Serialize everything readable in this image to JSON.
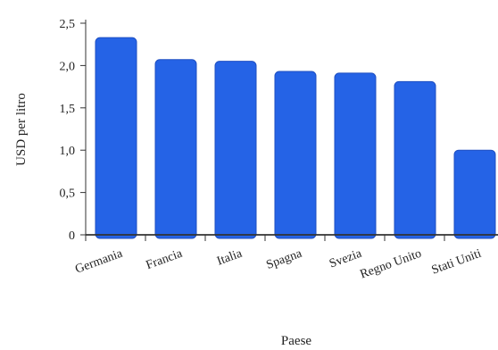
{
  "chart_data": {
    "type": "bar",
    "categories": [
      "Germania",
      "Francia",
      "Italia",
      "Spagna",
      "Svezia",
      "Regno Unito",
      "Stati Uniti"
    ],
    "values": [
      2.33,
      2.07,
      2.05,
      1.93,
      1.91,
      1.81,
      1.0
    ],
    "xlabel": "Paese",
    "ylabel": "USD per litro",
    "ylim": [
      0,
      2.5
    ],
    "yticks": [
      "0",
      "0,5",
      "1,0",
      "1,5",
      "2,0",
      "2,5"
    ],
    "ytick_values": [
      0,
      0.5,
      1.0,
      1.5,
      2.0,
      2.5
    ],
    "grid": false,
    "bar_color": "#2563e6",
    "bar_edge_color": "#1e4fc2"
  }
}
